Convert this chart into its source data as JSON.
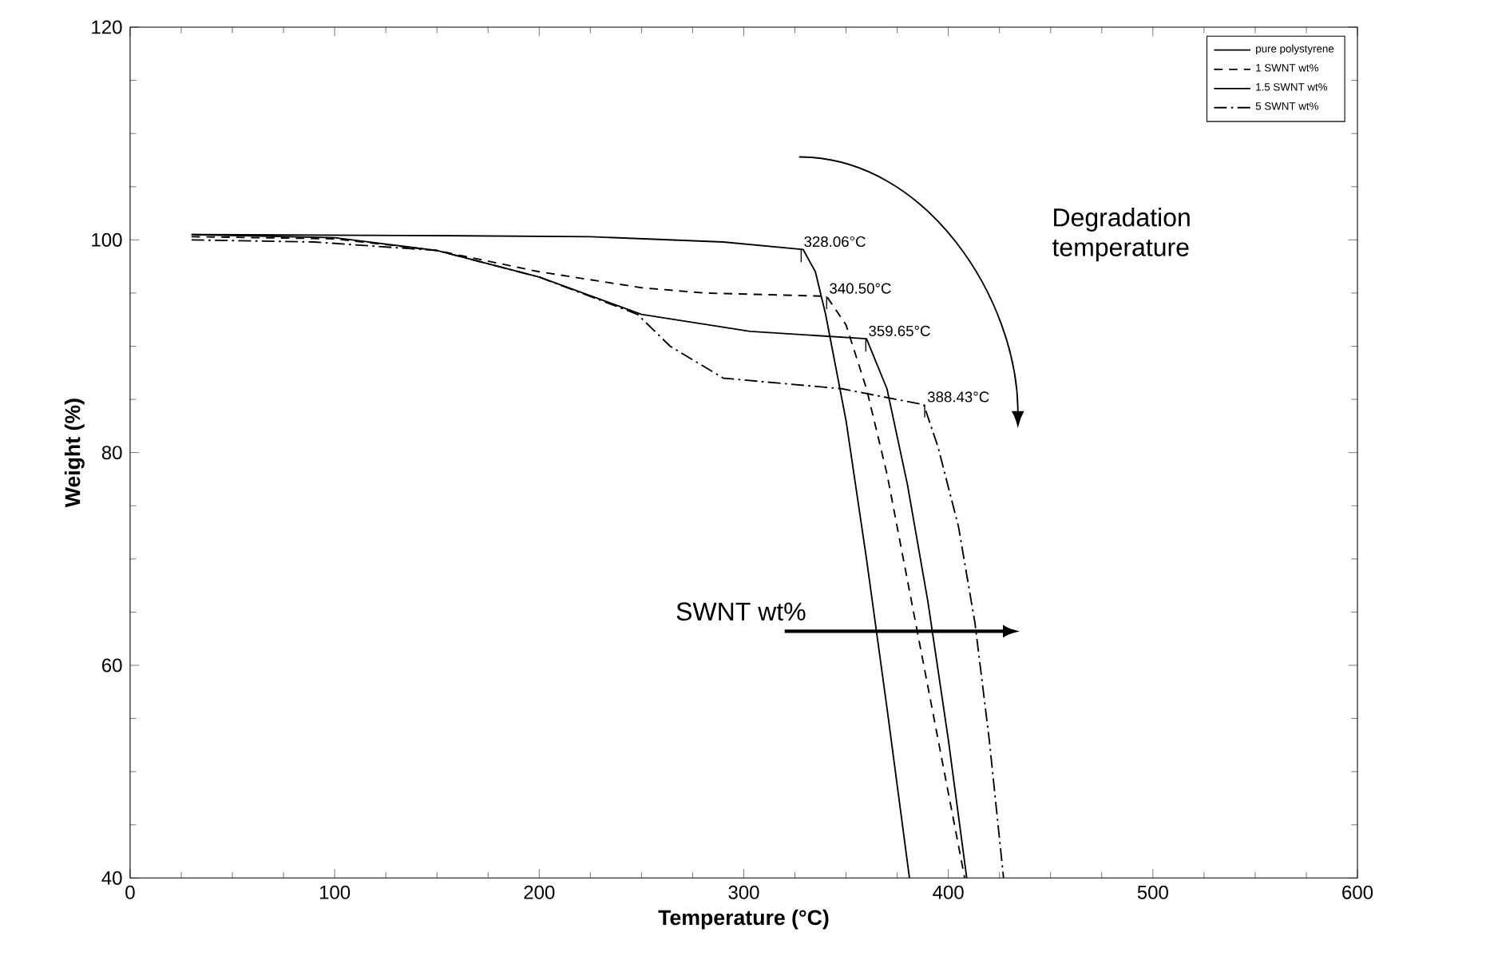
{
  "chart_data": {
    "type": "line",
    "xlabel": "Temperature (°C)",
    "ylabel": "Weight (%)",
    "xlim": [
      0,
      600
    ],
    "ylim": [
      40,
      120
    ],
    "xticks": [
      0,
      100,
      200,
      300,
      400,
      500,
      600
    ],
    "yticks": [
      40,
      60,
      80,
      100,
      120
    ],
    "grid": false,
    "legend": "top right",
    "marker": "none",
    "series": [
      {
        "name": "pure polystyrene",
        "color": "#000000",
        "line_style": "solid",
        "x": [
          30,
          150,
          225,
          290,
          329,
          335,
          340,
          345,
          350,
          360,
          370,
          381
        ],
        "values": [
          100.5,
          100.4,
          100.3,
          99.8,
          99.1,
          97,
          93,
          88,
          83,
          70,
          56,
          40
        ]
      },
      {
        "name": "1 SWNT wt%",
        "color": "#000000",
        "line_style": "dashed",
        "x": [
          30,
          100,
          150,
          200,
          250,
          281,
          340.5,
          350,
          360,
          370,
          380,
          390,
          400,
          408
        ],
        "values": [
          100.3,
          100.1,
          99,
          97,
          95.5,
          95,
          94.7,
          92,
          86,
          78,
          68,
          58,
          48,
          40
        ]
      },
      {
        "name": "1.5 SWNT wt%",
        "color": "#000000",
        "line_style": "solid",
        "x": [
          30,
          100,
          150,
          200,
          250,
          303,
          360,
          370,
          380,
          390,
          400,
          409
        ],
        "values": [
          100.5,
          100.2,
          99,
          96.5,
          93,
          91.4,
          90.7,
          86,
          77,
          66,
          53,
          40
        ]
      },
      {
        "name": "5 SWNT wt%",
        "color": "#000000",
        "line_style": "dashdot",
        "x": [
          30,
          90,
          150,
          200,
          248,
          264,
          290,
          348,
          388,
          395,
          405,
          413,
          420,
          427
        ],
        "values": [
          100,
          99.8,
          99,
          96.5,
          93,
          90,
          87,
          86,
          84.5,
          80.5,
          73,
          64,
          53,
          40
        ]
      }
    ],
    "annotations": [
      {
        "text": "328.06°C",
        "x": 328.06,
        "y": 99.1
      },
      {
        "text": "340.50°C",
        "x": 340.5,
        "y": 94.7
      },
      {
        "text": "359.65°C",
        "x": 359.65,
        "y": 90.7
      },
      {
        "text": "388.43°C",
        "x": 388.43,
        "y": 84.5
      },
      "Degradation temperature",
      "SWNT wt%"
    ]
  }
}
